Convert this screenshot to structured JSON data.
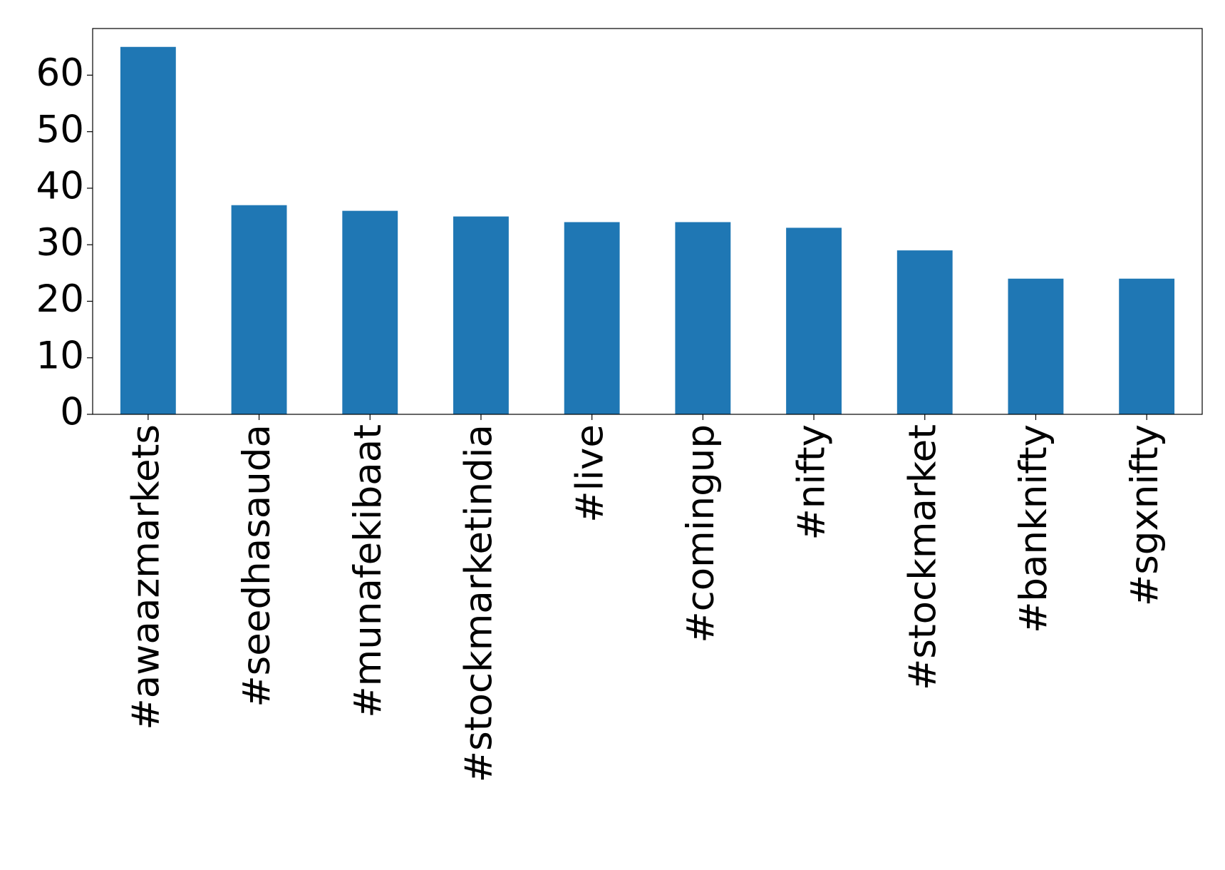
{
  "chart_data": {
    "type": "bar",
    "categories": [
      "#awaazmarkets",
      "#seedhasauda",
      "#munafekibaat",
      "#stockmarketindia",
      "#live",
      "#comingup",
      "#nifty",
      "#stockmarket",
      "#banknifty",
      "#sgxnifty"
    ],
    "values": [
      65,
      37,
      36,
      35,
      34,
      34,
      33,
      29,
      24,
      24
    ],
    "color": "#1f77b4",
    "ylim": [
      0,
      68.25
    ],
    "yticks": [
      0,
      10,
      20,
      30,
      40,
      50,
      60
    ],
    "grid": false
  }
}
